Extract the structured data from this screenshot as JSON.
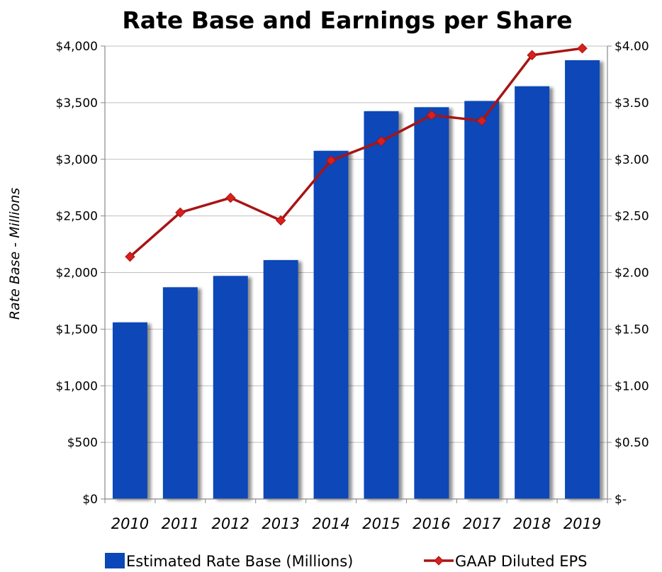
{
  "chart_data": {
    "type": "bar",
    "title": "Rate Base and Earnings per Share",
    "ylabel": "Rate Base - Millions",
    "xlabel": "",
    "categories": [
      "2010",
      "2011",
      "2012",
      "2013",
      "2014",
      "2015",
      "2016",
      "2017",
      "2018",
      "2019"
    ],
    "ylim": [
      0,
      4000
    ],
    "y2lim": [
      0,
      4.0
    ],
    "y_ticks": [
      "$0",
      "$500",
      "$1,000",
      "$1,500",
      "$2,000",
      "$2,500",
      "$3,000",
      "$3,500",
      "$4,000"
    ],
    "y2_ticks": [
      "$-",
      "$0.50",
      "$1.00",
      "$1.50",
      "$2.00",
      "$2.50",
      "$3.00",
      "$3.50",
      "$4.00"
    ],
    "grid": true,
    "legend_position": "bottom",
    "series": [
      {
        "name": "Estimated Rate Base (Millions)",
        "kind": "bar",
        "axis": "left",
        "color": "#0a47b8",
        "values": [
          1560,
          1870,
          1970,
          2110,
          3075,
          3425,
          3460,
          3515,
          3645,
          3875
        ]
      },
      {
        "name": "GAAP Diluted EPS",
        "kind": "line",
        "axis": "right",
        "color": "#a81414",
        "marker_color": "#d8201c",
        "values": [
          2.14,
          2.53,
          2.66,
          2.46,
          2.99,
          3.16,
          3.39,
          3.34,
          3.92,
          3.98
        ]
      }
    ]
  }
}
